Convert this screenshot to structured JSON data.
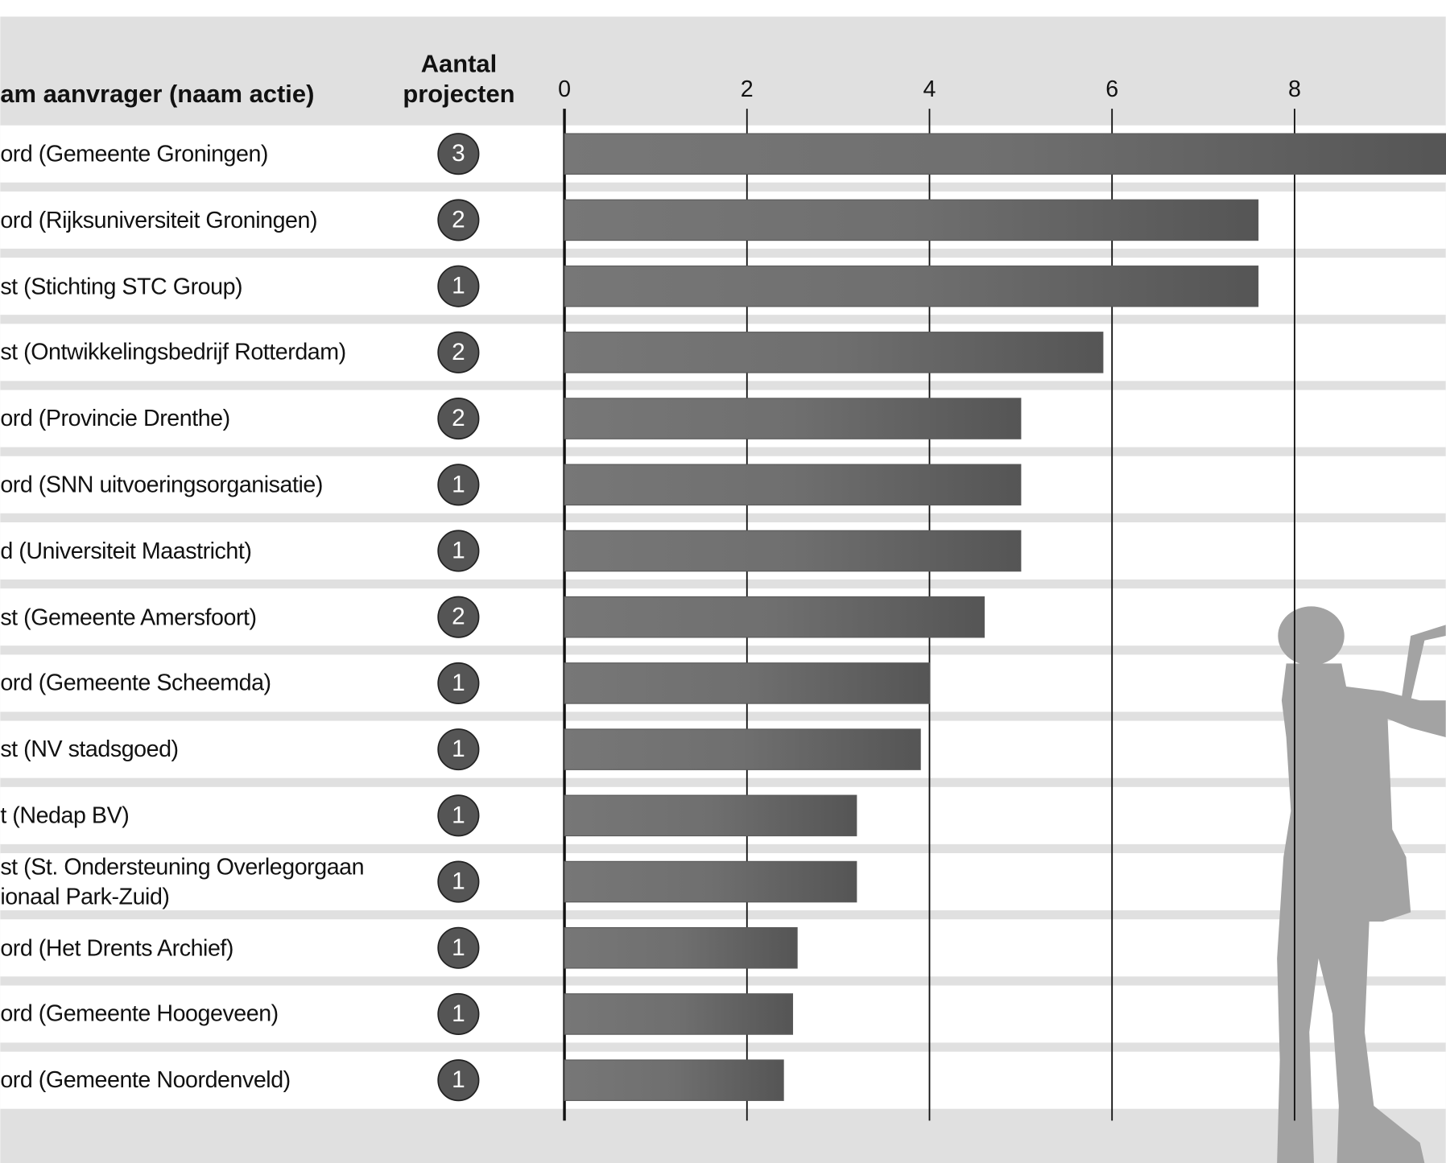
{
  "chart_data": {
    "type": "bar",
    "orientation": "horizontal",
    "name_header": "am aanvrager (naam actie)",
    "count_header": "Aantal\nprojecten",
    "categories": [
      "ord (Gemeente Groningen)",
      "ord (Rijksuniversiteit Groningen)",
      "st (Stichting STC Group)",
      "st (Ontwikkelingsbedrijf Rotterdam)",
      "ord (Provincie Drenthe)",
      "ord (SNN uitvoeringsorganisatie)",
      "d (Universiteit Maastricht)",
      "st (Gemeente Amersfoort)",
      "ord (Gemeente Scheemda)",
      "st (NV stadsgoed)",
      "t (Nedap BV)",
      "st (St. Ondersteuning Overlegorgaan\nionaal Park-Zuid)",
      "ord (Het Drents Archief)",
      "ord (Gemeente Hoogeveen)",
      "ord (Gemeente Noordenveld)"
    ],
    "counts": [
      3,
      2,
      1,
      2,
      2,
      1,
      1,
      2,
      1,
      1,
      1,
      1,
      1,
      1,
      1
    ],
    "values": [
      9.7,
      7.6,
      7.6,
      5.9,
      5,
      5,
      5,
      4.6,
      4,
      3.9,
      3.2,
      3.2,
      2.55,
      2.5,
      2.4
    ],
    "color": "#5a5a5a",
    "xlim": [
      0,
      9.66
    ],
    "xticks": [
      0,
      2,
      4,
      6,
      8
    ],
    "grid": true
  }
}
